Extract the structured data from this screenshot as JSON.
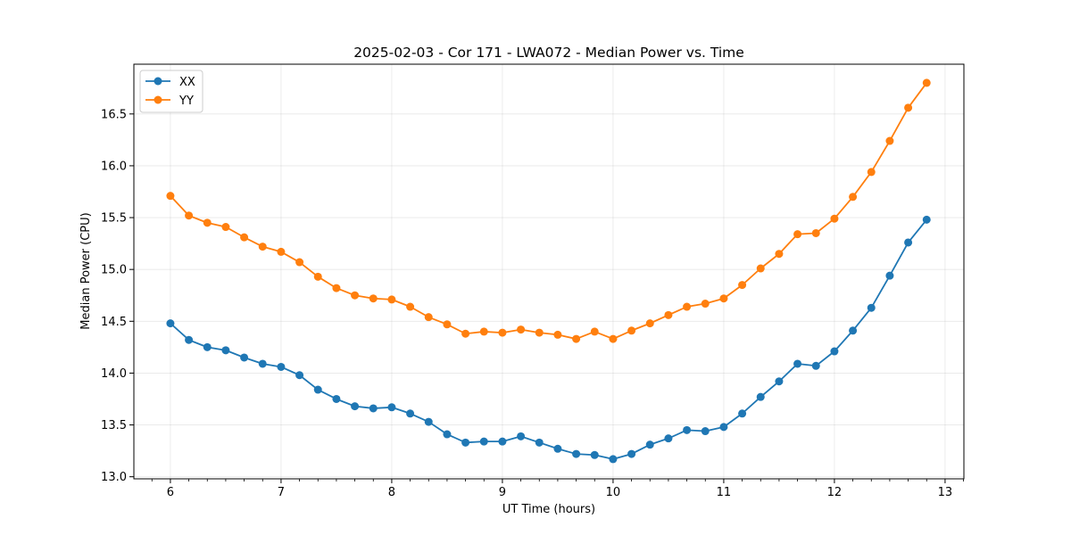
{
  "chart_data": {
    "type": "line",
    "title": "2025-02-03 - Cor 171 - LWA072 - Median Power vs. Time",
    "xlabel": "UT Time (hours)",
    "ylabel": "Median Power (CPU)",
    "xlim": [
      5.67,
      13.17
    ],
    "ylim": [
      12.98,
      16.98
    ],
    "xticks": [
      6,
      7,
      8,
      9,
      10,
      11,
      12,
      13
    ],
    "yticks": [
      13.0,
      13.5,
      14.0,
      14.5,
      15.0,
      15.5,
      16.0,
      16.5
    ],
    "xtick_labels": [
      "6",
      "7",
      "8",
      "9",
      "10",
      "11",
      "12",
      "13"
    ],
    "ytick_labels": [
      "13.0",
      "13.5",
      "14.0",
      "14.5",
      "15.0",
      "15.5",
      "16.0",
      "16.5"
    ],
    "grid": true,
    "legend_position": "top-left",
    "x": [
      6.0,
      6.1667,
      6.3333,
      6.5,
      6.6667,
      6.8333,
      7.0,
      7.1667,
      7.3333,
      7.5,
      7.6667,
      7.8333,
      8.0,
      8.1667,
      8.3333,
      8.5,
      8.6667,
      8.8333,
      9.0,
      9.1667,
      9.3333,
      9.5,
      9.6667,
      9.8333,
      10.0,
      10.1667,
      10.3333,
      10.5,
      10.6667,
      10.8333,
      11.0,
      11.1667,
      11.3333,
      11.5,
      11.6667,
      11.8333,
      12.0,
      12.1667,
      12.3333,
      12.5,
      12.6667,
      12.8333
    ],
    "series": [
      {
        "name": "XX",
        "color": "#1f77b4",
        "values": [
          14.48,
          14.32,
          14.25,
          14.22,
          14.15,
          14.09,
          14.06,
          13.98,
          13.84,
          13.75,
          13.68,
          13.66,
          13.67,
          13.61,
          13.53,
          13.41,
          13.33,
          13.34,
          13.34,
          13.39,
          13.33,
          13.27,
          13.22,
          13.21,
          13.17,
          13.22,
          13.31,
          13.37,
          13.45,
          13.44,
          13.48,
          13.61,
          13.77,
          13.92,
          14.09,
          14.07,
          14.21,
          14.41,
          14.63,
          14.94,
          15.26,
          15.48
        ]
      },
      {
        "name": "YY",
        "color": "#ff7f0e",
        "values": [
          15.71,
          15.52,
          15.45,
          15.41,
          15.31,
          15.22,
          15.17,
          15.07,
          14.93,
          14.82,
          14.75,
          14.72,
          14.71,
          14.64,
          14.54,
          14.47,
          14.38,
          14.4,
          14.39,
          14.42,
          14.39,
          14.37,
          14.33,
          14.4,
          14.33,
          14.41,
          14.48,
          14.56,
          14.64,
          14.67,
          14.72,
          14.85,
          15.01,
          15.15,
          15.34,
          15.35,
          15.49,
          15.7,
          15.94,
          16.24,
          16.56,
          16.8
        ]
      }
    ]
  }
}
